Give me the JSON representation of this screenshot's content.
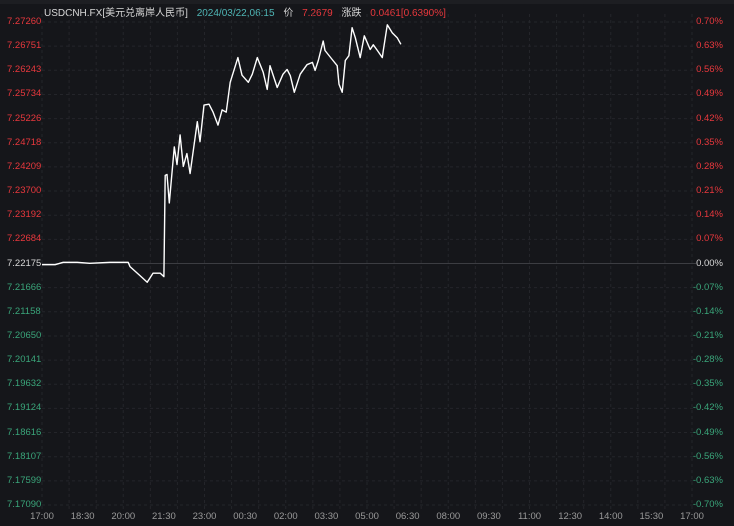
{
  "header": {
    "symbol": "USDCNH.FX[美元兑离岸人民币]",
    "datetime": "2024/03/22,06:15",
    "price_label": "价",
    "price": "7.2679",
    "change_label": "涨跌",
    "change": "0.0461[0.6390%]"
  },
  "colors": {
    "up": "#e8383d",
    "down": "#3aa57a",
    "line": "#ffffff",
    "datetime": "#4fb6b6",
    "background": "#15161a"
  },
  "chart_data": {
    "type": "line",
    "title": "",
    "base_price": 7.22175,
    "ylim": [
      7.1709,
      7.2726
    ],
    "grid": true,
    "y_ticks_left": [
      "7.27260",
      "7.26751",
      "7.26243",
      "7.25734",
      "7.25226",
      "7.24718",
      "7.24209",
      "7.23700",
      "7.23192",
      "7.22684",
      "7.22175",
      "7.21666",
      "7.21158",
      "7.20650",
      "7.20141",
      "7.19632",
      "7.19124",
      "7.18616",
      "7.18107",
      "7.17599",
      "7.17090"
    ],
    "y_ticks_right": [
      "0.70%",
      "0.63%",
      "0.56%",
      "0.49%",
      "0.42%",
      "0.35%",
      "0.28%",
      "0.21%",
      "0.14%",
      "0.07%",
      "0.00%",
      "-0.07%",
      "-0.14%",
      "-0.21%",
      "-0.28%",
      "-0.35%",
      "-0.42%",
      "-0.49%",
      "-0.56%",
      "-0.63%",
      "-0.70%"
    ],
    "x_ticks": [
      "17:00",
      "18:30",
      "20:00",
      "21:30",
      "23:00",
      "00:30",
      "02:00",
      "03:30",
      "05:00",
      "06:30",
      "08:00",
      "09:30",
      "11:00",
      "12:30",
      "14:00",
      "15:30",
      "17:00"
    ],
    "series": [
      {
        "x": [
          "17:00",
          "17:29",
          "17:47",
          "18:18",
          "18:46",
          "19:31",
          "20:11",
          "20:15",
          "20:37",
          "20:53",
          "21:06",
          "21:22",
          "21:30",
          "21:33",
          "21:37",
          "21:42",
          "21:53",
          "21:59",
          "22:06",
          "22:13",
          "22:21",
          "22:28",
          "22:44",
          "22:50",
          "22:59",
          "23:10",
          "23:19",
          "23:30",
          "23:39",
          "23:48",
          "23:57",
          "00:14",
          "00:23",
          "00:37",
          "00:46",
          "00:57",
          "01:10",
          "01:19",
          "01:25",
          "01:41",
          "01:54",
          "02:03",
          "02:10",
          "02:19",
          "02:32",
          "02:47",
          "02:59",
          "03:05",
          "03:12",
          "03:23",
          "03:27",
          "03:43",
          "03:54",
          "03:58",
          "04:05",
          "04:12",
          "04:20",
          "04:27",
          "04:34",
          "04:45",
          "04:54",
          "05:07",
          "05:14",
          "05:23",
          "05:34",
          "05:36",
          "05:45",
          "05:56",
          "06:07",
          "06:15"
        ],
        "y": [
          7.2215,
          7.2215,
          7.222,
          7.222,
          7.2218,
          7.222,
          7.222,
          7.2211,
          7.2192,
          7.2178,
          7.2197,
          7.2197,
          7.219,
          7.2403,
          7.2405,
          7.2345,
          7.2463,
          7.2426,
          7.2488,
          7.2422,
          7.2449,
          7.2407,
          7.2516,
          7.2474,
          7.2551,
          7.2553,
          7.2536,
          7.2509,
          7.2541,
          7.2536,
          7.2599,
          7.2651,
          7.2614,
          7.2599,
          7.2616,
          7.2651,
          7.262,
          7.2584,
          7.2634,
          7.2588,
          7.2616,
          7.2626,
          7.2613,
          7.2578,
          7.2616,
          7.2636,
          7.2641,
          7.2624,
          7.2645,
          7.2686,
          7.2666,
          7.2647,
          7.2634,
          7.2595,
          7.2578,
          7.2645,
          7.2655,
          7.2714,
          7.2693,
          7.2651,
          7.2697,
          7.2668,
          7.2678,
          7.2666,
          7.2651,
          7.2666,
          7.272,
          7.2703,
          7.2693,
          7.2679
        ]
      }
    ]
  }
}
